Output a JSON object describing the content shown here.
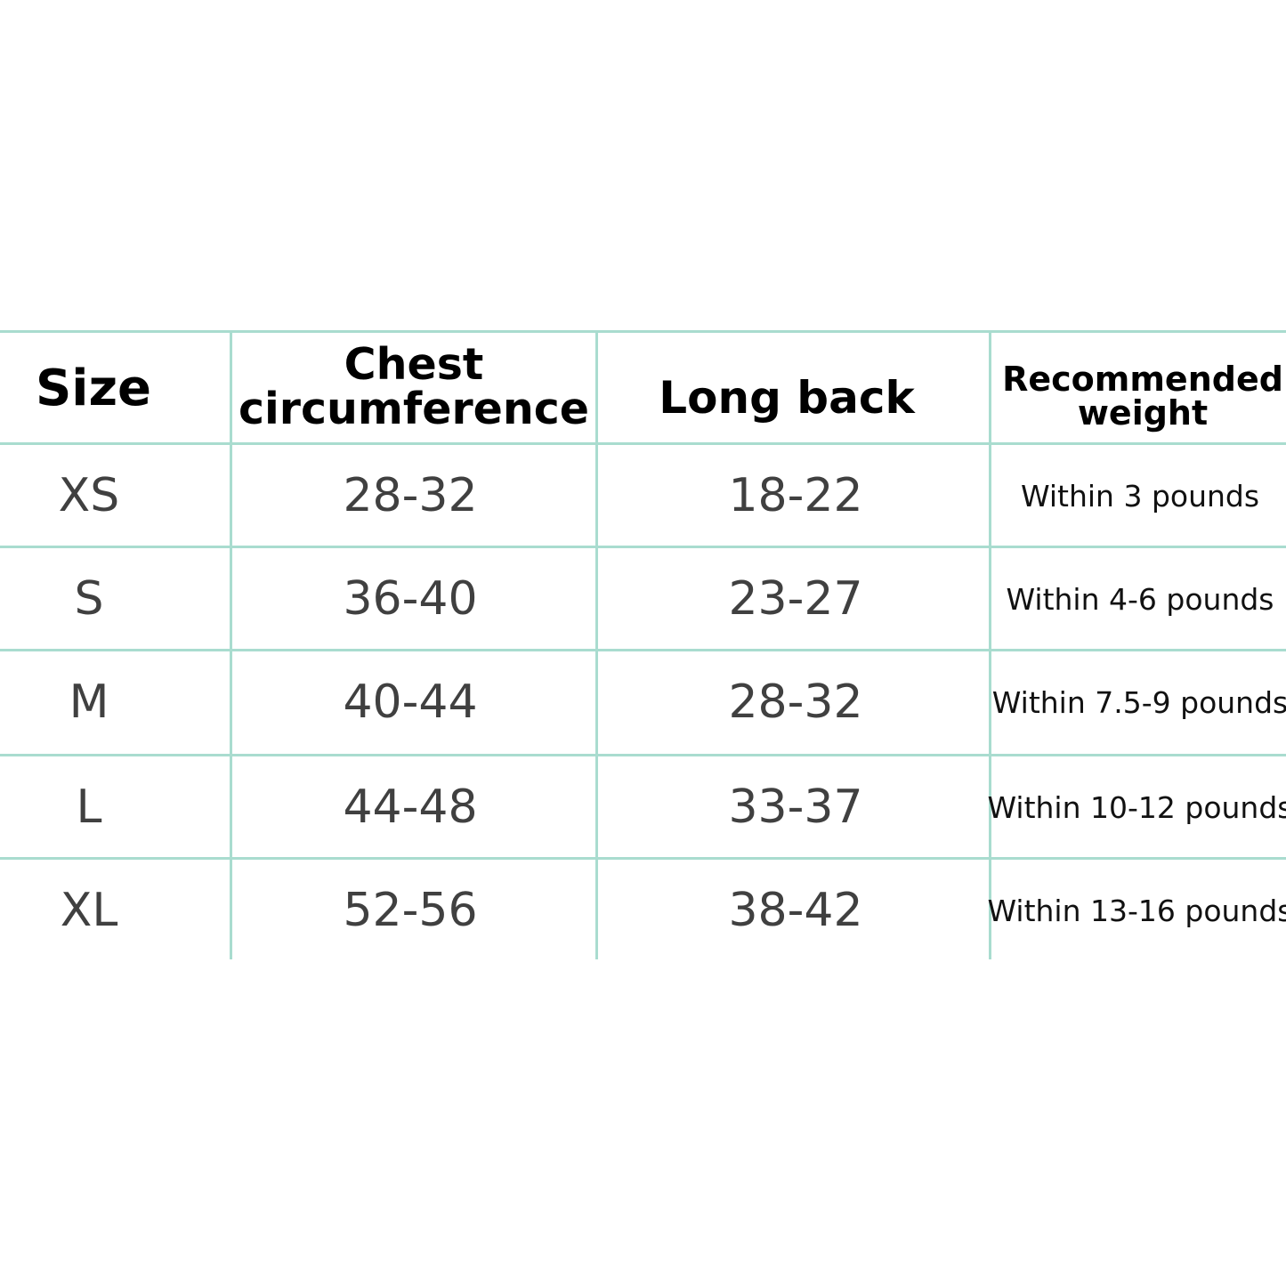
{
  "table": {
    "headers": [
      "Size",
      "Chest circumference",
      "Long back",
      "Recommended weight"
    ],
    "header_lines": {
      "chest": [
        "Chest",
        "circumference"
      ],
      "weight": [
        "Recommended",
        "weight"
      ]
    },
    "rows": [
      [
        "XS",
        "28-32",
        "18-22",
        "Within 3 pounds"
      ],
      [
        "S",
        "36-40",
        "23-27",
        "Within 4-6 pounds"
      ],
      [
        "M",
        "40-44",
        "28-32",
        "Within 7.5-9 pounds"
      ],
      [
        "L",
        "44-48",
        "33-37",
        "Within 10-12 pounds"
      ],
      [
        "XL",
        "52-56",
        "38-42",
        "Within 13-16 pounds"
      ]
    ],
    "line_color": "#a9dccf"
  }
}
